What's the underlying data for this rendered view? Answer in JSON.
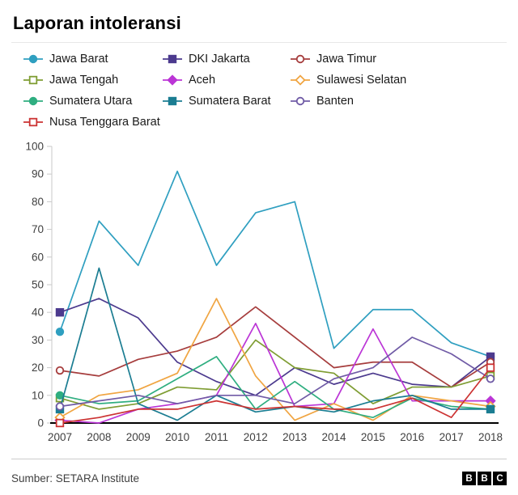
{
  "title": "Laporan intoleransi",
  "source": "Sumber: SETARA Institute",
  "logo_letters": [
    "B",
    "B",
    "C"
  ],
  "axis_color": "#404040",
  "chart_data": {
    "type": "line",
    "title": "Laporan intoleransi",
    "xlabel": "",
    "ylabel": "",
    "x": [
      2007,
      2008,
      2009,
      2010,
      2011,
      2012,
      2013,
      2014,
      2015,
      2016,
      2017,
      2018
    ],
    "ylim": [
      0,
      100
    ],
    "yticks": [
      0,
      10,
      20,
      30,
      40,
      50,
      60,
      70,
      80,
      90,
      100
    ],
    "grid": false,
    "legend_position": "top",
    "series": [
      {
        "name": "Jawa Barat",
        "color": "#2f9fc0",
        "marker": "circle",
        "open": false,
        "values": [
          33,
          73,
          57,
          91,
          57,
          76,
          80,
          27,
          41,
          41,
          29,
          24
        ]
      },
      {
        "name": "DKI Jakarta",
        "color": "#4c3a8e",
        "marker": "square",
        "open": false,
        "values": [
          40,
          45,
          38,
          22,
          15,
          10,
          20,
          14,
          18,
          14,
          13,
          24
        ]
      },
      {
        "name": "Jawa Timur",
        "color": "#a63d3d",
        "marker": "circle",
        "open": true,
        "values": [
          19,
          17,
          23,
          26,
          31,
          42,
          31,
          20,
          22,
          22,
          13,
          22
        ]
      },
      {
        "name": "Jawa Tengah",
        "color": "#7f9d33",
        "marker": "square",
        "open": true,
        "values": [
          9,
          5,
          7,
          13,
          12,
          30,
          20,
          18,
          7,
          13,
          13,
          17
        ]
      },
      {
        "name": "Aceh",
        "color": "#bb35d6",
        "marker": "diamond",
        "open": false,
        "values": [
          1,
          0,
          5,
          7,
          10,
          36,
          6,
          7,
          34,
          8,
          8,
          8
        ]
      },
      {
        "name": "Sulawesi Selatan",
        "color": "#f0a542",
        "marker": "diamond",
        "open": true,
        "values": [
          2,
          10,
          12,
          18,
          45,
          17,
          1,
          7,
          1,
          10,
          8,
          6
        ]
      },
      {
        "name": "Sumatera Utara",
        "color": "#2fae80",
        "marker": "circle",
        "open": false,
        "values": [
          10,
          7,
          8,
          16,
          24,
          5,
          15,
          5,
          2,
          9,
          6,
          5
        ]
      },
      {
        "name": "Sumatera Barat",
        "color": "#1b7d92",
        "marker": "square",
        "open": false,
        "values": [
          5,
          56,
          7,
          1,
          10,
          4,
          6,
          4,
          8,
          10,
          5,
          5
        ]
      },
      {
        "name": "Banten",
        "color": "#705ba6",
        "marker": "circle",
        "open": true,
        "values": [
          6,
          8,
          10,
          7,
          10,
          10,
          7,
          16,
          20,
          31,
          25,
          16
        ]
      },
      {
        "name": "Nusa Tenggara Barat",
        "color": "#cc3333",
        "marker": "square",
        "open": true,
        "values": [
          0,
          2,
          5,
          5,
          8,
          5,
          6,
          5,
          5,
          9,
          2,
          20
        ]
      }
    ]
  }
}
